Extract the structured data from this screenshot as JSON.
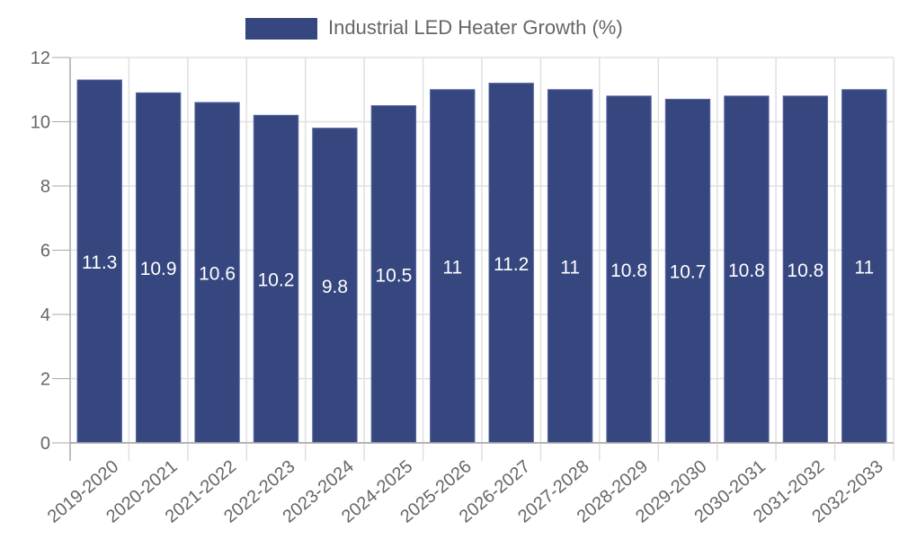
{
  "chart_data": {
    "type": "bar",
    "title": "",
    "xlabel": "",
    "ylabel": "",
    "categories": [
      "2019-2020",
      "2020-2021",
      "2021-2022",
      "2022-2023",
      "2023-2024",
      "2024-2025",
      "2025-2026",
      "2026-2027",
      "2027-2028",
      "2028-2029",
      "2029-2030",
      "2030-2031",
      "2031-2032",
      "2032-2033"
    ],
    "series": [
      {
        "name": "Industrial LED Heater Growth (%)",
        "values": [
          11.3,
          10.9,
          10.6,
          10.2,
          9.8,
          10.5,
          11,
          11.2,
          11,
          10.8,
          10.7,
          10.8,
          10.8,
          11
        ],
        "labels": [
          "11.3",
          "10.9",
          "10.6",
          "10.2",
          "9.8",
          "10.5",
          "11",
          "11.2",
          "11",
          "10.8",
          "10.7",
          "10.8",
          "10.8",
          "11"
        ],
        "color": "#36467f"
      }
    ],
    "ylim": [
      0,
      12
    ],
    "yticks": [
      "0",
      "2",
      "4",
      "6",
      "8",
      "10",
      "12"
    ],
    "grid": true,
    "legend": "top-center"
  }
}
